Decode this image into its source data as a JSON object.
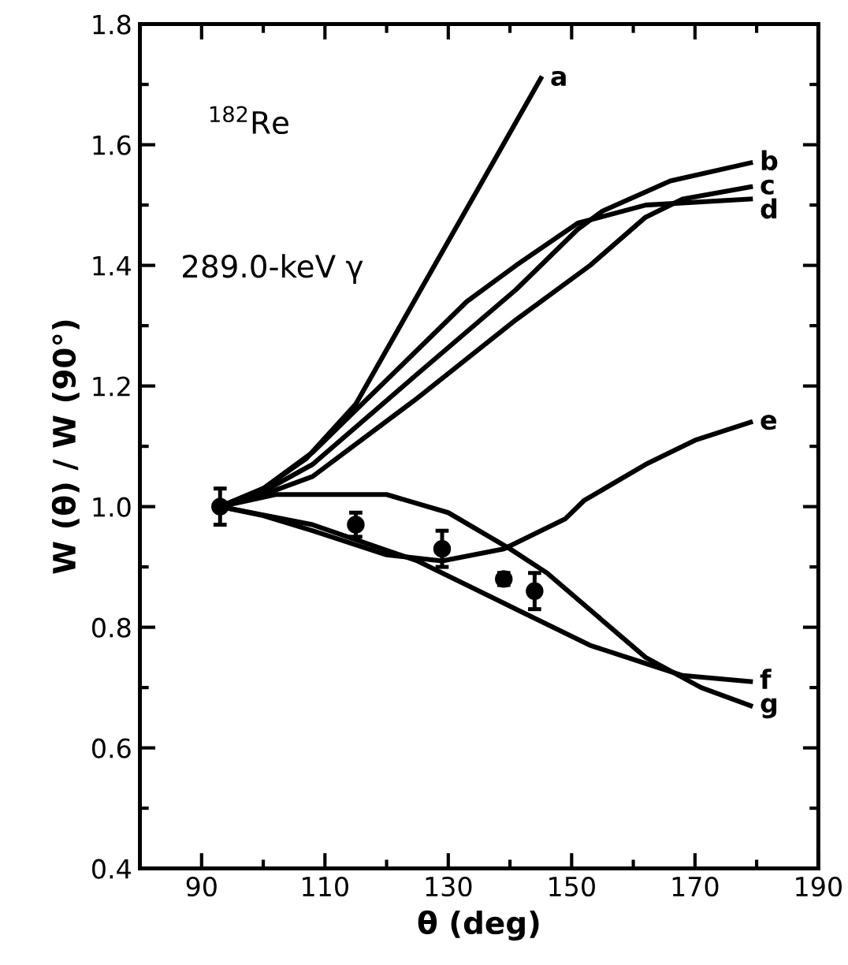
{
  "chart_data": {
    "type": "line",
    "xlabel": "θ (deg)",
    "ylabel": "W (θ) / W (90°)",
    "annotations": [
      "$^{182}$Re",
      "289.0-keV γ"
    ],
    "xlim": [
      80,
      190
    ],
    "ylim": [
      0.4,
      1.8
    ],
    "xticks": [
      90,
      {
        "value": 100,
        "label": null
      },
      110,
      {
        "value": 120,
        "label": null
      },
      130,
      {
        "value": 140,
        "label": null
      },
      150,
      {
        "value": 160,
        "label": null
      },
      170,
      {
        "value": 180,
        "label": null
      },
      190
    ],
    "yticks": [
      0.4,
      {
        "value": 0.5,
        "label": null
      },
      0.6,
      {
        "value": 0.7,
        "label": null
      },
      0.8,
      {
        "value": 0.9,
        "label": null
      },
      {
        "value": 1.0,
        "label": "1.0"
      },
      {
        "value": 1.1,
        "label": null
      },
      1.2,
      {
        "value": 1.3,
        "label": null
      },
      1.4,
      {
        "value": 1.5,
        "label": null
      },
      1.6,
      {
        "value": 1.7,
        "label": null
      },
      1.8
    ],
    "grid": false,
    "legend": "right",
    "line_style": "solid",
    "marker": "none",
    "series": [
      {
        "name": "a",
        "color": "#000000",
        "x": [
          93,
          100,
          107,
          115,
          125,
          135,
          145
        ],
        "values": [
          1.0,
          1.03,
          1.08,
          1.17,
          1.35,
          1.53,
          1.71
        ]
      },
      {
        "name": "b",
        "color": "#000000",
        "x": [
          93,
          100,
          108,
          125,
          141,
          151,
          155,
          166,
          179
        ],
        "values": [
          1.0,
          1.025,
          1.07,
          1.22,
          1.36,
          1.46,
          1.49,
          1.54,
          1.57
        ]
      },
      {
        "name": "c",
        "color": "#000000",
        "x": [
          93,
          100,
          108,
          125,
          141,
          153,
          162,
          168,
          179
        ],
        "values": [
          1.0,
          1.02,
          1.05,
          1.18,
          1.31,
          1.4,
          1.48,
          1.51,
          1.53
        ]
      },
      {
        "name": "d",
        "color": "#000000",
        "x": [
          93,
          100,
          108,
          125,
          133,
          141,
          151,
          162,
          179
        ],
        "values": [
          1.0,
          1.03,
          1.09,
          1.26,
          1.34,
          1.4,
          1.47,
          1.5,
          1.51
        ]
      },
      {
        "name": "e",
        "color": "#000000",
        "x": [
          93,
          100,
          108,
          120,
          129,
          139,
          149,
          152,
          162,
          170,
          179
        ],
        "values": [
          1.0,
          0.985,
          0.96,
          0.92,
          0.91,
          0.93,
          0.98,
          1.01,
          1.07,
          1.11,
          1.14
        ]
      },
      {
        "name": "f",
        "color": "#000000",
        "x": [
          93,
          108,
          125,
          141,
          153,
          162,
          168,
          179
        ],
        "values": [
          1.0,
          0.97,
          0.91,
          0.83,
          0.77,
          0.74,
          0.72,
          0.71
        ]
      },
      {
        "name": "g",
        "color": "#000000",
        "x": [
          93,
          102,
          120,
          130,
          140,
          146,
          154,
          162,
          171,
          179
        ],
        "values": [
          1.0,
          1.02,
          1.02,
          0.99,
          0.93,
          0.89,
          0.82,
          0.75,
          0.7,
          0.67
        ]
      },
      {
        "type": "scatter",
        "color": "#000000",
        "marker": "circle",
        "x": [
          93,
          115,
          129,
          139,
          144
        ],
        "values": [
          1.0,
          0.97,
          0.93,
          0.88,
          0.86
        ],
        "errors": [
          0.03,
          0.02,
          0.03,
          0.01,
          0.03
        ]
      }
    ]
  }
}
